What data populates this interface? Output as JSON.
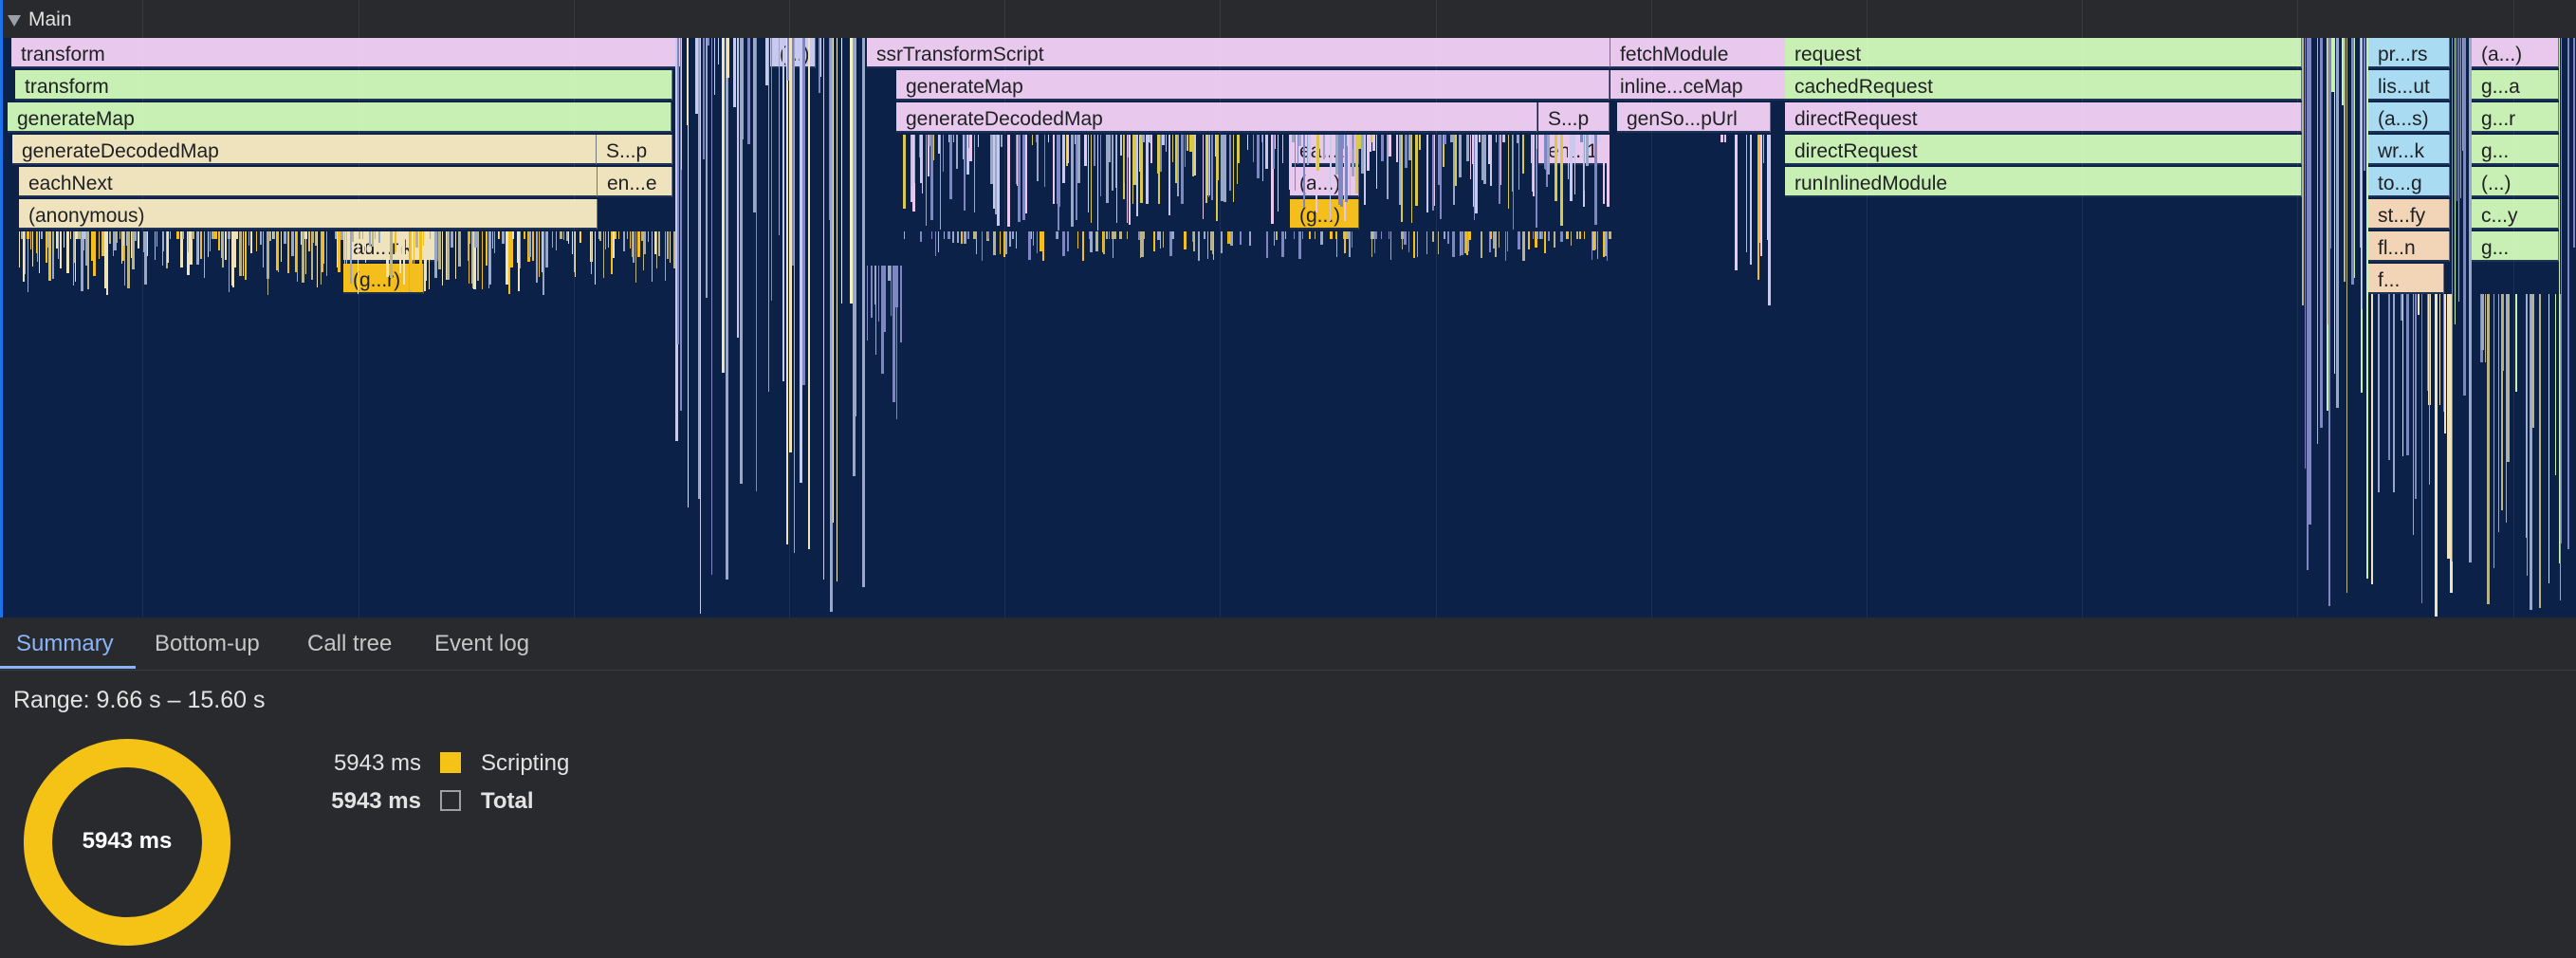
{
  "track": {
    "title": "Main"
  },
  "flame": {
    "blocks": [
      {
        "label": "transform",
        "color": "pink"
      },
      {
        "label": "transform",
        "color": "green"
      },
      {
        "label": "generateMap",
        "color": "green"
      },
      {
        "label": "generateDecodedMap",
        "color": "beige"
      },
      {
        "label": "S...p",
        "color": "beige"
      },
      {
        "label": "eachNext",
        "color": "beige"
      },
      {
        "label": "en...e",
        "color": "beige"
      },
      {
        "label": "(anonymous)",
        "color": "beige"
      },
      {
        "label": "ad...nk",
        "color": "beige"
      },
      {
        "label": "(g...r)",
        "color": "yel"
      },
      {
        "label": "(...)",
        "color": "lav"
      },
      {
        "label": "ssrTransformScript",
        "color": "pink"
      },
      {
        "label": "generateMap",
        "color": "pink"
      },
      {
        "label": "generateDecodedMap",
        "color": "pink"
      },
      {
        "label": "S...p",
        "color": "pink"
      },
      {
        "label": "ea...t",
        "color": "pink"
      },
      {
        "label": "en...1",
        "color": "pink"
      },
      {
        "label": "(a...)",
        "color": "pink"
      },
      {
        "label": "(g...)",
        "color": "yel"
      },
      {
        "label": "fetchModule",
        "color": "pink"
      },
      {
        "label": "inline...ceMap",
        "color": "pink"
      },
      {
        "label": "genSo...pUrl",
        "color": "pink"
      },
      {
        "label": "request",
        "color": "green"
      },
      {
        "label": "cachedRequest",
        "color": "green"
      },
      {
        "label": "directRequest",
        "color": "pink"
      },
      {
        "label": "directRequest",
        "color": "green"
      },
      {
        "label": "runInlinedModule",
        "color": "green"
      },
      {
        "label": "pr...rs",
        "color": "blue"
      },
      {
        "label": "lis...ut",
        "color": "blue"
      },
      {
        "label": "(a...s)",
        "color": "blue"
      },
      {
        "label": "wr...k",
        "color": "blue"
      },
      {
        "label": "to...g",
        "color": "blue"
      },
      {
        "label": "st...fy",
        "color": "sal"
      },
      {
        "label": "fl...n",
        "color": "sal"
      },
      {
        "label": "f...",
        "color": "sal"
      },
      {
        "label": "(a...)",
        "color": "pink"
      },
      {
        "label": "g...a",
        "color": "green"
      },
      {
        "label": "g...r",
        "color": "green"
      },
      {
        "label": "g...",
        "color": "green"
      },
      {
        "label": "(...)",
        "color": "green"
      },
      {
        "label": "c...y",
        "color": "green"
      },
      {
        "label": "g...",
        "color": "green"
      }
    ]
  },
  "tabs": [
    {
      "label": "Summary",
      "active": true
    },
    {
      "label": "Bottom-up",
      "active": false
    },
    {
      "label": "Call tree",
      "active": false
    },
    {
      "label": "Event log",
      "active": false
    }
  ],
  "summary": {
    "range": "Range: 9.66 s – 15.60 s",
    "donut_label": "5943 ms",
    "scripting_fraction": 1.0,
    "legend": [
      {
        "ms": "5943 ms",
        "name": "Scripting",
        "color": "#f4c315",
        "bold": false
      },
      {
        "ms": "5943 ms",
        "name": "Total",
        "color": "",
        "bold": true
      }
    ]
  }
}
